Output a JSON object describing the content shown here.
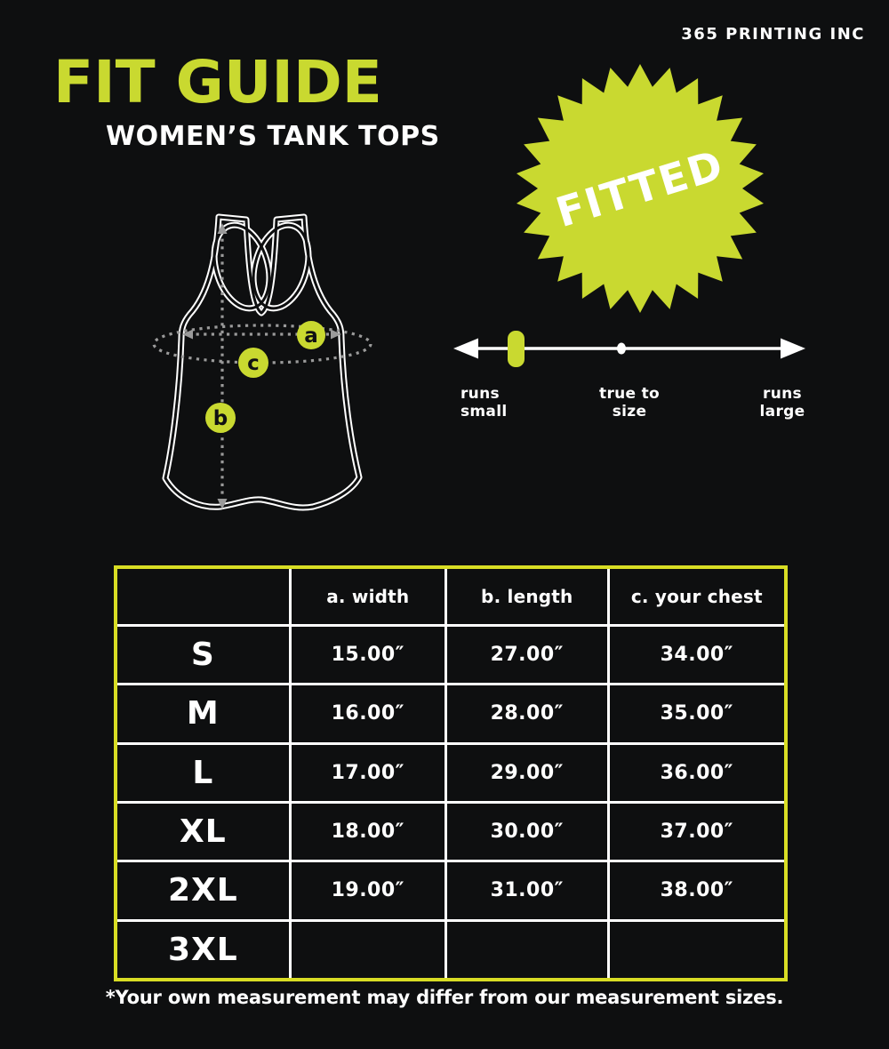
{
  "brand": "365 PRINTING INC",
  "title": "FIT GUIDE",
  "subtitle": "WOMEN’S TANK TOPS",
  "badge": {
    "label": "FITTED"
  },
  "diagram": {
    "markers": {
      "a": "a",
      "b": "b",
      "c": "c"
    }
  },
  "fit_scale": {
    "labels": {
      "left": [
        "runs",
        "small"
      ],
      "center": [
        "true to",
        "size"
      ],
      "right": [
        "runs",
        "large"
      ]
    },
    "marker_position": "runs small"
  },
  "size_table": {
    "headers": {
      "size": "",
      "width": "a. width",
      "length": "b. length",
      "chest": "c. your chest"
    },
    "rows": [
      {
        "size": "S",
        "width": "15.00″",
        "length": "27.00″",
        "chest": "34.00″"
      },
      {
        "size": "M",
        "width": "16.00″",
        "length": "28.00″",
        "chest": "35.00″"
      },
      {
        "size": "L",
        "width": "17.00″",
        "length": "29.00″",
        "chest": "36.00″"
      },
      {
        "size": "XL",
        "width": "18.00″",
        "length": "30.00″",
        "chest": "37.00″"
      },
      {
        "size": "2XL",
        "width": "19.00″",
        "length": "31.00″",
        "chest": "38.00″"
      },
      {
        "size": "3XL",
        "width": "",
        "length": "",
        "chest": ""
      }
    ]
  },
  "footnote": "*Your own measurement may differ from our measurement sizes.",
  "colors": {
    "background": "#0e0f10",
    "accent": "#c9d930",
    "table_border": "#d8dd24",
    "dotted": "#9a9a9a",
    "ink": "#ffffff"
  }
}
